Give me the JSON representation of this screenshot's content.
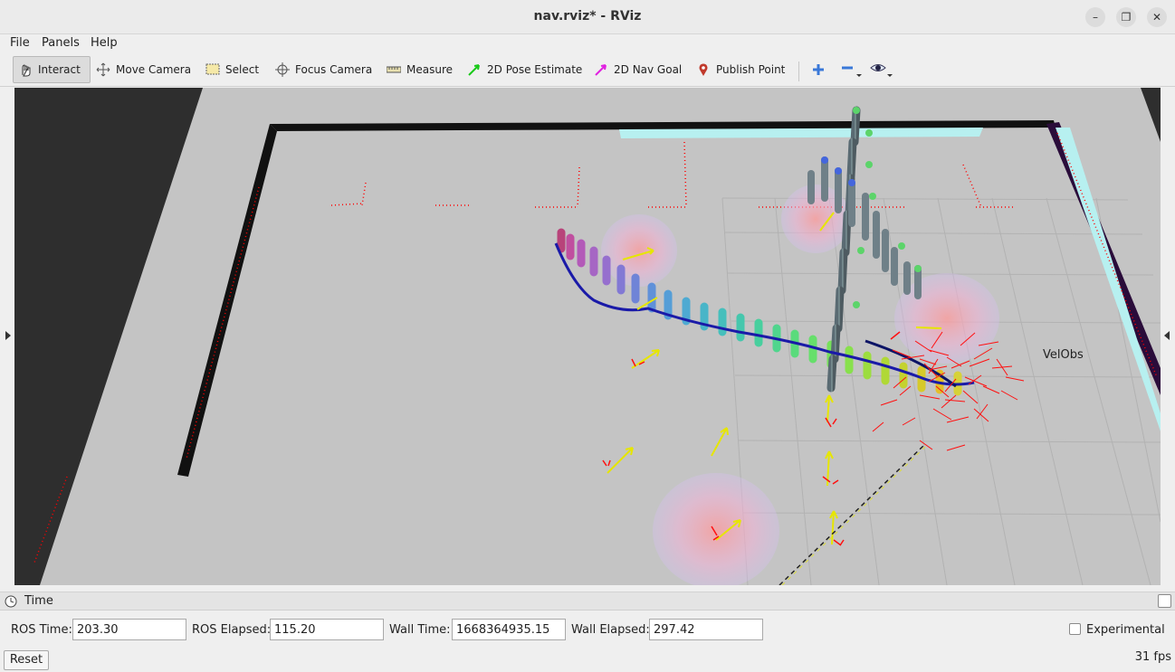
{
  "window": {
    "title": "nav.rviz* - RViz",
    "minimize_icon": "minimize-icon",
    "restore_icon": "restore-icon",
    "close_icon": "close-icon"
  },
  "menubar": {
    "file": "File",
    "panels": "Panels",
    "help": "Help"
  },
  "toolbar": {
    "interact": "Interact",
    "move_camera": "Move Camera",
    "select": "Select",
    "focus_camera": "Focus Camera",
    "measure": "Measure",
    "pose_estimate": "2D Pose Estimate",
    "nav_goal": "2D Nav Goal",
    "publish_point": "Publish Point"
  },
  "viewport": {
    "label_velobs": "VelObs",
    "colors": {
      "background": "#2e2e2e",
      "floor": "#c3c3c3",
      "wall": "#111111",
      "trajectory": "#1a1aa8",
      "laser": "#ff0000",
      "goal_arrow": "#e6e600",
      "border_cyan": "#b7f0f0"
    }
  },
  "time_panel": {
    "title": "Time",
    "ros_time_label": "ROS Time:",
    "ros_time_value": "203.30",
    "ros_elapsed_label": "ROS Elapsed:",
    "ros_elapsed_value": "115.20",
    "wall_time_label": "Wall Time:",
    "wall_time_value": "1668364935.15",
    "wall_elapsed_label": "Wall Elapsed:",
    "wall_elapsed_value": "297.42",
    "experimental_label": "Experimental",
    "reset_label": "Reset",
    "fps": "31 fps"
  }
}
